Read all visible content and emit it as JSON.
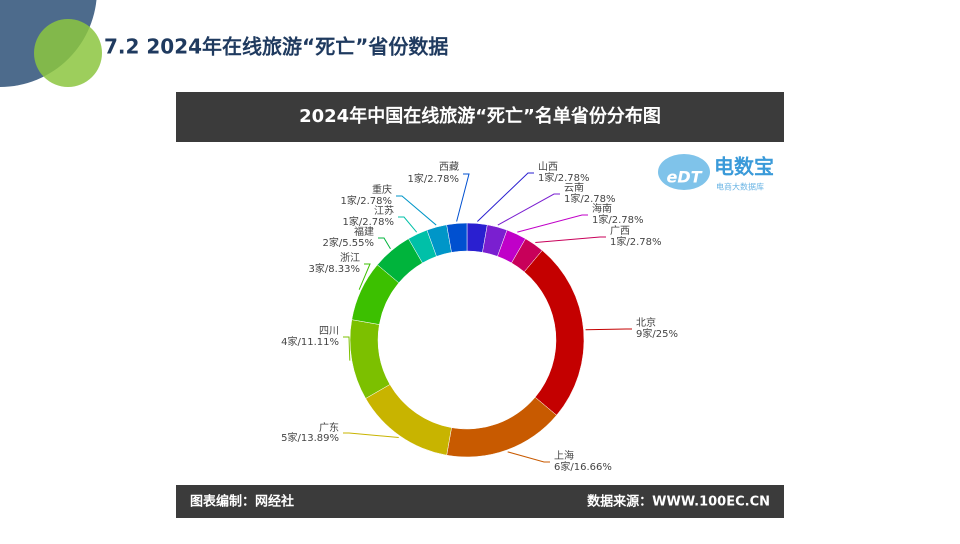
{
  "slide_title": "7.2 2024年在线旅游“死亡”省份数据",
  "chart_data": {
    "type": "donut",
    "title": "2024年中国在线旅游“死亡”名单省份分布图",
    "categories": [
      "山西",
      "云南",
      "海南",
      "广西",
      "北京",
      "上海",
      "广东",
      "四川",
      "浙江",
      "福建",
      "江苏",
      "重庆",
      "西藏"
    ],
    "values": [
      2.78,
      2.78,
      2.78,
      2.78,
      25,
      16.66,
      13.89,
      11.11,
      8.33,
      5.55,
      2.78,
      2.78,
      2.78
    ],
    "value_labels": [
      "1家/2.78%",
      "1家/2.78%",
      "1家/2.78%",
      "1家/2.78%",
      "9家/25%",
      "6家/16.66%",
      "5家/13.89%",
      "4家/11.11%",
      "3家/8.33%",
      "2家/5.55%",
      "1家/2.78%",
      "1家/2.78%",
      "1家/2.78%"
    ],
    "colors": [
      "#2a1fd0",
      "#7a1fd0",
      "#c000c8",
      "#c8005a",
      "#c40000",
      "#c85a00",
      "#c8b400",
      "#7cc000",
      "#3cc000",
      "#00b43c",
      "#00c0a8",
      "#0096c8",
      "#0050d0"
    ],
    "source_left": "图表编制：网经社",
    "source_right": "数据来源：WWW.100EC.CN",
    "logo": {
      "mark": "eDT",
      "name": "电数宝",
      "tagline": "电商大数据库"
    }
  }
}
